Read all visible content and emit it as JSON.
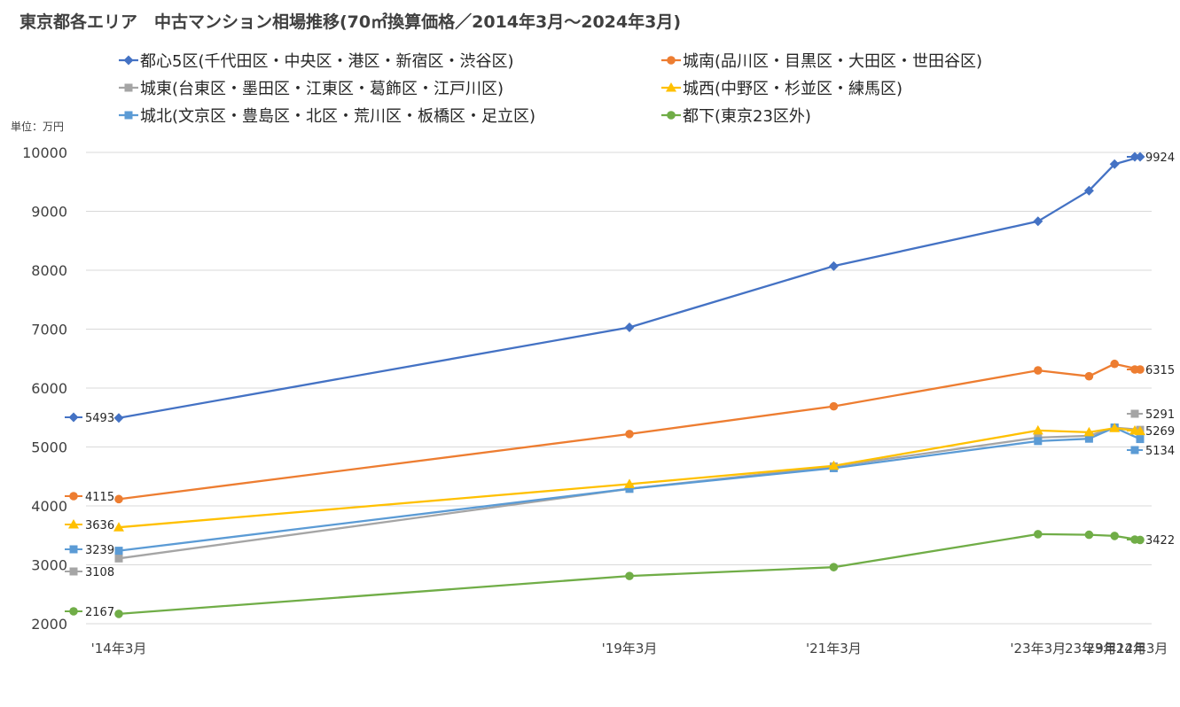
{
  "chart_data": {
    "type": "line",
    "title": "東京都各エリア　中古マンション相場推移(70㎡換算価格／2014年3月～2024年3月)",
    "unit_label": "単位：万円",
    "ylim": [
      2000,
      10000
    ],
    "yticks": [
      2000,
      3000,
      4000,
      5000,
      6000,
      7000,
      8000,
      9000,
      10000
    ],
    "grid": true,
    "legend_position": "top",
    "x": [
      2014.25,
      2019.25,
      2021.25,
      2023.25,
      2023.75,
      2024.0,
      2024.25
    ],
    "categories": [
      "'14年3月",
      "'19年3月",
      "'21年3月",
      "'23年3月",
      "'23年9月",
      "'23年12月",
      "'24年3月"
    ],
    "series": [
      {
        "name": "都心5区(千代田区・中央区・港区・新宿区・渋谷区)",
        "color": "#4472C4",
        "marker": "diamond",
        "values": [
          5493,
          7030,
          8070,
          8830,
          9350,
          9800,
          9924
        ],
        "start_label": "5493",
        "end_label": "9924"
      },
      {
        "name": "城南(品川区・目黒区・大田区・世田谷区)",
        "color": "#ED7D31",
        "marker": "circle",
        "values": [
          4115,
          5220,
          5690,
          6300,
          6200,
          6410,
          6315
        ],
        "start_label": "4115",
        "end_label": "6315"
      },
      {
        "name": "城東(台東区・墨田区・江東区・葛飾区・江戸川区)",
        "color": "#A5A5A5",
        "marker": "square",
        "values": [
          3108,
          4290,
          4670,
          5160,
          5190,
          5330,
          5291
        ],
        "start_label": "3108",
        "end_label": "5291"
      },
      {
        "name": "城西(中野区・杉並区・練馬区)",
        "color": "#FFC000",
        "marker": "triangle",
        "values": [
          3636,
          4370,
          4680,
          5280,
          5250,
          5320,
          5269
        ],
        "start_label": "3636",
        "end_label": "5269"
      },
      {
        "name": "城北(文京区・豊島区・北区・荒川区・板橋区・足立区)",
        "color": "#5B9BD5",
        "marker": "square",
        "values": [
          3239,
          4290,
          4640,
          5100,
          5140,
          5330,
          5134
        ],
        "start_label": "3239",
        "end_label": "5134"
      },
      {
        "name": "都下(東京23区外)",
        "color": "#70AD47",
        "marker": "circle",
        "values": [
          2167,
          2810,
          2960,
          3520,
          3510,
          3490,
          3422
        ],
        "start_label": "2167",
        "end_label": "3422"
      }
    ]
  }
}
